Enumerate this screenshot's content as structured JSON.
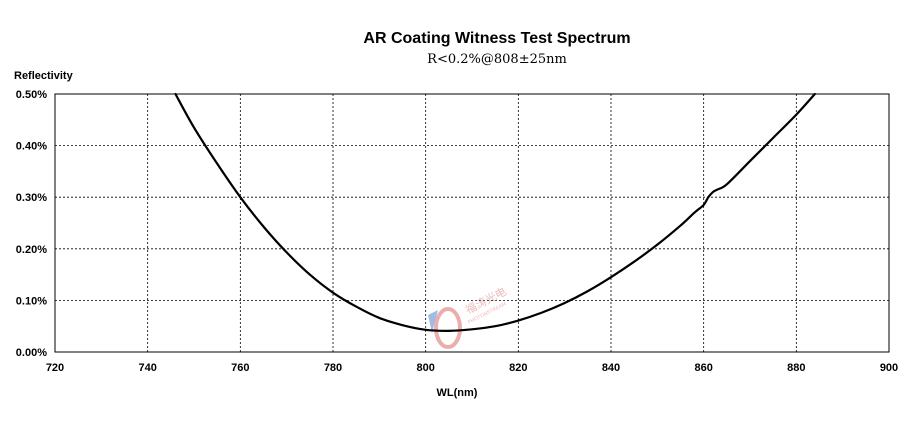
{
  "chart_data": {
    "type": "line",
    "title": "AR Coating Witness Test Spectrum",
    "subtitle": "R<0.2%@808±25nm",
    "xlabel": "WL(nm)",
    "ylabel": "Reflectivity",
    "xlim": [
      720,
      900
    ],
    "ylim": [
      0,
      0.5
    ],
    "x_ticks": [
      720,
      740,
      760,
      780,
      800,
      820,
      840,
      860,
      880,
      900
    ],
    "y_ticks": [
      0,
      0.1,
      0.2,
      0.3,
      0.4,
      0.5
    ],
    "x_tick_labels": [
      "720",
      "740",
      "760",
      "780",
      "800",
      "820",
      "840",
      "860",
      "880",
      "900"
    ],
    "y_tick_labels": [
      "0.00%",
      "0.10%",
      "0.20%",
      "0.30%",
      "0.40%",
      "0.50%"
    ],
    "grid": true,
    "series": [
      {
        "x": [
          746,
          750,
          755,
          760,
          765,
          770,
          775,
          780,
          785,
          790,
          795,
          800,
          805,
          810,
          815,
          820,
          825,
          830,
          835,
          840,
          845,
          850,
          855,
          858,
          860,
          861,
          862,
          863,
          865,
          870,
          875,
          880,
          884
        ],
        "values": [
          0.5,
          0.435,
          0.365,
          0.3,
          0.243,
          0.193,
          0.15,
          0.115,
          0.088,
          0.066,
          0.052,
          0.043,
          0.041,
          0.044,
          0.05,
          0.061,
          0.076,
          0.095,
          0.118,
          0.145,
          0.175,
          0.208,
          0.245,
          0.27,
          0.285,
          0.3,
          0.31,
          0.315,
          0.325,
          0.37,
          0.415,
          0.46,
          0.5
        ]
      }
    ]
  },
  "watermark": {
    "brand_cn": "福涛光电",
    "brand_en": "PHOTONSTREAM",
    "colors": {
      "logo_red": "#e8a0a0",
      "logo_blue": "#8fb1e0"
    }
  }
}
